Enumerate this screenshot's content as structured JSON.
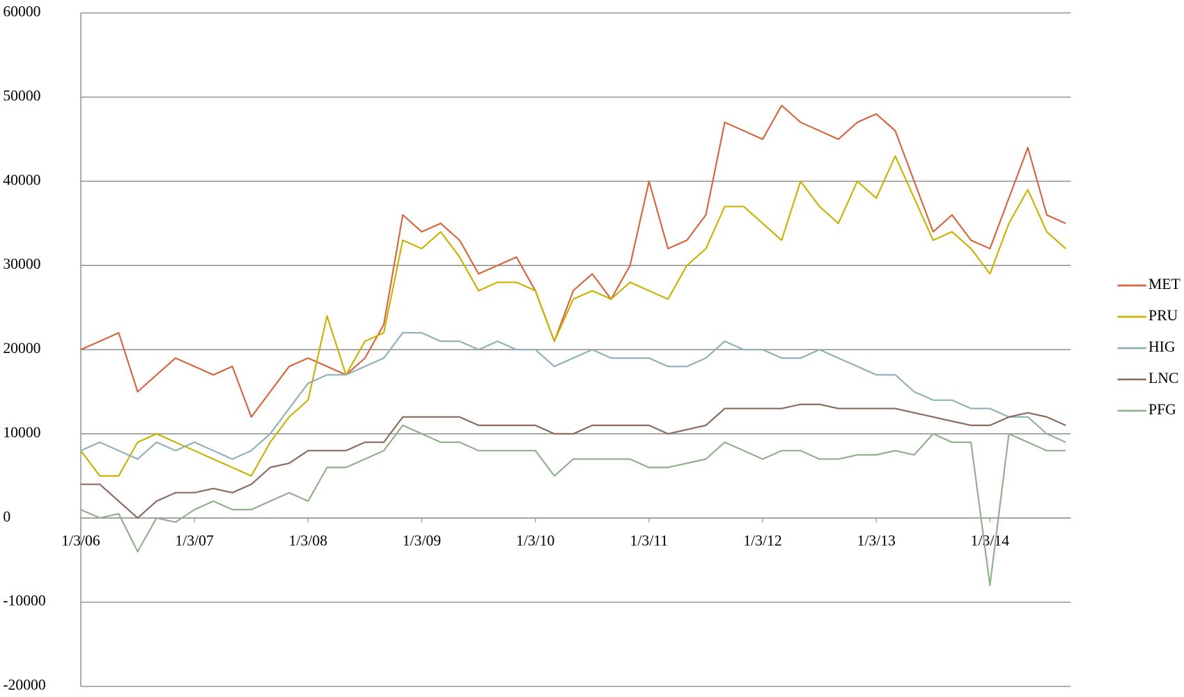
{
  "chart_data": {
    "type": "line",
    "categories": [
      "1/3/06",
      null,
      null,
      null,
      null,
      null,
      "1/3/07",
      null,
      null,
      null,
      null,
      null,
      "1/3/08",
      null,
      null,
      null,
      null,
      null,
      "1/3/09",
      null,
      null,
      null,
      null,
      null,
      "1/3/10",
      null,
      null,
      null,
      null,
      null,
      "1/3/11",
      null,
      null,
      null,
      null,
      null,
      "1/3/12",
      null,
      null,
      null,
      null,
      null,
      "1/3/13",
      null,
      null,
      null,
      null,
      null,
      "1/3/14",
      null,
      null,
      null,
      null
    ],
    "series": [
      {
        "name": "MET",
        "color": "#d4663f",
        "values": [
          20000,
          21000,
          22000,
          15000,
          17000,
          19000,
          18000,
          17000,
          18000,
          12000,
          15000,
          18000,
          19000,
          18000,
          17000,
          19000,
          23000,
          36000,
          34000,
          35000,
          33000,
          29000,
          30000,
          31000,
          27000,
          21000,
          27000,
          29000,
          26000,
          30000,
          40000,
          32000,
          33000,
          36000,
          47000,
          46000,
          45000,
          49000,
          47000,
          46000,
          45000,
          47000,
          48000,
          46000,
          40000,
          34000,
          36000,
          33000,
          32000,
          38000,
          44000,
          36000,
          35000
        ]
      },
      {
        "name": "PRU",
        "color": "#c9b200",
        "values": [
          8000,
          5000,
          5000,
          9000,
          10000,
          9000,
          8000,
          7000,
          6000,
          5000,
          9000,
          12000,
          14000,
          24000,
          17000,
          21000,
          22000,
          33000,
          32000,
          34000,
          31000,
          27000,
          28000,
          28000,
          27000,
          21000,
          26000,
          27000,
          26000,
          28000,
          27000,
          26000,
          30000,
          32000,
          37000,
          37000,
          35000,
          33000,
          40000,
          37000,
          35000,
          40000,
          38000,
          43000,
          38000,
          33000,
          34000,
          32000,
          29000,
          35000,
          39000,
          34000,
          32000
        ]
      },
      {
        "name": "HIG",
        "color": "#8fb0b5",
        "values": [
          8000,
          9000,
          8000,
          7000,
          9000,
          8000,
          9000,
          8000,
          7000,
          8000,
          10000,
          13000,
          16000,
          17000,
          17000,
          18000,
          19000,
          22000,
          22000,
          21000,
          21000,
          20000,
          21000,
          20000,
          20000,
          18000,
          19000,
          20000,
          19000,
          19000,
          19000,
          18000,
          18000,
          19000,
          21000,
          20000,
          20000,
          19000,
          19000,
          20000,
          19000,
          18000,
          17000,
          17000,
          15000,
          14000,
          14000,
          13000,
          13000,
          12000,
          12000,
          10000,
          9000
        ]
      },
      {
        "name": "LNC",
        "color": "#8b6a5f",
        "values": [
          4000,
          4000,
          2000,
          0,
          2000,
          3000,
          3000,
          3500,
          3000,
          4000,
          6000,
          6500,
          8000,
          8000,
          8000,
          9000,
          9000,
          12000,
          12000,
          12000,
          12000,
          11000,
          11000,
          11000,
          11000,
          10000,
          10000,
          11000,
          11000,
          11000,
          11000,
          10000,
          10500,
          11000,
          13000,
          13000,
          13000,
          13000,
          13500,
          13500,
          13000,
          13000,
          13000,
          13000,
          12500,
          12000,
          11500,
          11000,
          11000,
          12000,
          12500,
          12000,
          11000
        ]
      },
      {
        "name": "PFG",
        "color": "#8fb08a",
        "values": [
          1000,
          0,
          500,
          -4000,
          0,
          -500,
          1000,
          2000,
          1000,
          1000,
          2000,
          3000,
          2000,
          6000,
          6000,
          7000,
          8000,
          11000,
          10000,
          9000,
          9000,
          8000,
          8000,
          8000,
          8000,
          5000,
          7000,
          7000,
          7000,
          7000,
          6000,
          6000,
          6500,
          7000,
          9000,
          8000,
          7000,
          8000,
          8000,
          7000,
          7000,
          7500,
          7500,
          8000,
          7500,
          10000,
          9000,
          9000,
          -8000,
          10000,
          9000,
          8000,
          8000
        ]
      }
    ],
    "ylim": [
      -20000,
      60000
    ],
    "yticks": [
      -20000,
      -10000,
      0,
      10000,
      20000,
      30000,
      40000,
      50000,
      60000
    ],
    "grid": true,
    "legend": "right"
  }
}
